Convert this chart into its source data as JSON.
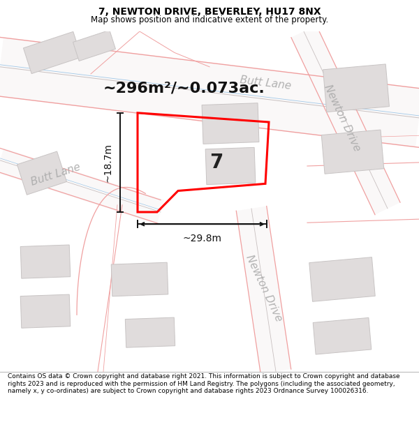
{
  "title": "7, NEWTON DRIVE, BEVERLEY, HU17 8NX",
  "subtitle": "Map shows position and indicative extent of the property.",
  "footer": "Contains OS data © Crown copyright and database right 2021. This information is subject to Crown copyright and database rights 2023 and is reproduced with the permission of HM Land Registry. The polygons (including the associated geometry, namely x, y co-ordinates) are subject to Crown copyright and database rights 2023 Ordnance Survey 100026316.",
  "area_label": "~296m²/~0.073ac.",
  "width_label": "~29.8m",
  "height_label": "~18.7m",
  "plot_number": "7",
  "map_bg": "#ffffff",
  "road_fill": "#f5f0f0",
  "road_line_pink": "#f0a0a0",
  "road_line_gray": "#c8c0c0",
  "road_line_blue": "#a0c8e8",
  "building_color": "#e0dcdc",
  "building_edge": "#c8c4c4",
  "plot_color": "#ff0000",
  "dim_color": "#111111",
  "road_label_color": "#aaaaaa",
  "title_fontsize": 10,
  "subtitle_fontsize": 8.5,
  "footer_fontsize": 6.5,
  "area_fontsize": 16,
  "dim_fontsize": 10,
  "plot_label_fontsize": 20,
  "road_label_fontsize": 11
}
